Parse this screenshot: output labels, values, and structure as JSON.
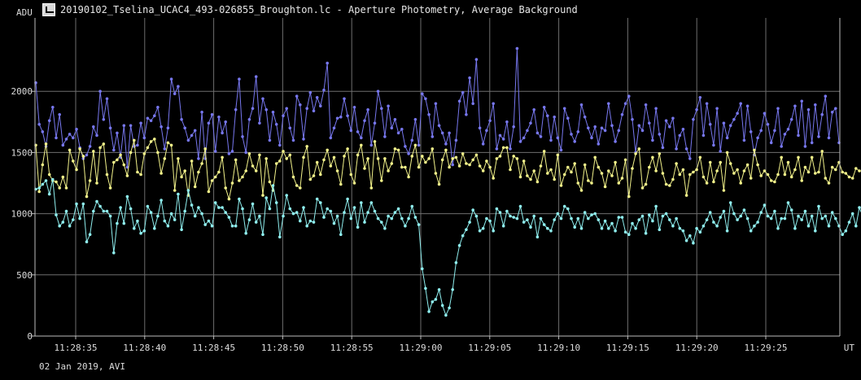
{
  "window": {
    "title": "20190102_Tselina_UCAC4_493-026855_Broughton.lc - Aperture Photometry, Average Background",
    "icon": "lightcurve-app-icon"
  },
  "footer_text": "02 Jan 2019, AVI",
  "colors": {
    "background": "#000000",
    "grid": "#6e6e6e",
    "axis": "#bdbdbd",
    "blue": "#7777ee",
    "yellow": "#f2f28a",
    "cyan": "#8fefef"
  },
  "chart_data": {
    "type": "line",
    "title": "20190102_Tselina_UCAC4_493-026855_Broughton.lc - Aperture Photometry, Average Background",
    "ylabel": "ADU",
    "xlabel": "UT",
    "ylim": [
      0,
      2600
    ],
    "yticks": [
      0,
      500,
      1000,
      1500,
      2000
    ],
    "xticks": [
      "11:28:35",
      "11:28:40",
      "11:28:45",
      "11:28:50",
      "11:28:55",
      "11:29:00",
      "11:29:05",
      "11:29:10",
      "11:29:15",
      "11:29:20",
      "11:29:25"
    ],
    "grid": true,
    "markers": true,
    "n_points": 240,
    "series": [
      {
        "color": "#7777ee",
        "values": [
          2070,
          1730,
          1670,
          1550,
          1760,
          1870,
          1620,
          1810,
          1560,
          1610,
          1650,
          1620,
          1690,
          1540,
          1450,
          1480,
          1550,
          1710,
          1640,
          2000,
          1770,
          1940,
          1700,
          1520,
          1660,
          1460,
          1720,
          1380,
          1720,
          1550,
          1560,
          1740,
          1620,
          1780,
          1760,
          1800,
          1870,
          1710,
          1530,
          1700,
          2100,
          1980,
          2040,
          1770,
          1700,
          1600,
          1640,
          1680,
          1450,
          1830,
          1450,
          1740,
          1810,
          1510,
          1790,
          1660,
          1750,
          1490,
          1510,
          1850,
          2100,
          1630,
          1500,
          1770,
          1860,
          2120,
          1740,
          1940,
          1850,
          1600,
          1830,
          1730,
          1560,
          1800,
          1860,
          1700,
          1600,
          1960,
          1890,
          1610,
          1860,
          1990,
          1840,
          1950,
          1880,
          2010,
          2230,
          1620,
          1700,
          1780,
          1790,
          1940,
          1800,
          1680,
          1870,
          1670,
          1620,
          1760,
          1850,
          1560,
          1740,
          2000,
          1860,
          1630,
          1880,
          1700,
          1770,
          1660,
          1690,
          1550,
          1490,
          1600,
          1770,
          1560,
          1980,
          1940,
          1810,
          1630,
          1900,
          1720,
          1660,
          1570,
          1660,
          1400,
          1600,
          1920,
          1990,
          1810,
          2110,
          1900,
          2260,
          1700,
          1570,
          1680,
          1760,
          1900,
          1530,
          1640,
          1610,
          1750,
          1530,
          1710,
          2350,
          1590,
          1620,
          1680,
          1740,
          1850,
          1660,
          1630,
          1870,
          1800,
          1600,
          1790,
          1620,
          1520,
          1860,
          1780,
          1650,
          1590,
          1670,
          1890,
          1790,
          1700,
          1620,
          1710,
          1570,
          1700,
          1680,
          1900,
          1720,
          1590,
          1680,
          1810,
          1900,
          1960,
          1770,
          1500,
          1720,
          1680,
          1890,
          1740,
          1600,
          1860,
          1650,
          1540,
          1760,
          1710,
          1780,
          1530,
          1640,
          1690,
          1530,
          1450,
          1770,
          1850,
          1950,
          1640,
          1900,
          1730,
          1560,
          1860,
          1510,
          1740,
          1620,
          1720,
          1770,
          1820,
          1900,
          1600,
          1880,
          1670,
          1480,
          1620,
          1680,
          1820,
          1730,
          1580,
          1680,
          1860,
          1550,
          1650,
          1690,
          1770,
          1880,
          1640,
          1920,
          1550,
          1850,
          1580,
          1890,
          1630,
          1810,
          1960,
          1620,
          1830,
          1860,
          1580
        ]
      },
      {
        "color": "#f2f28a",
        "values": [
          1560,
          1180,
          1400,
          1570,
          1320,
          1270,
          1260,
          1210,
          1300,
          1210,
          1520,
          1430,
          1360,
          1530,
          1470,
          1140,
          1270,
          1510,
          1250,
          1540,
          1570,
          1320,
          1210,
          1420,
          1440,
          1480,
          1400,
          1310,
          1500,
          1600,
          1340,
          1320,
          1490,
          1540,
          1590,
          1610,
          1500,
          1330,
          1450,
          1580,
          1560,
          1190,
          1450,
          1300,
          1350,
          1150,
          1430,
          1220,
          1340,
          1410,
          1530,
          1180,
          1270,
          1300,
          1340,
          1460,
          1210,
          1120,
          1250,
          1440,
          1270,
          1300,
          1350,
          1490,
          1390,
          1350,
          1480,
          1150,
          1450,
          1260,
          1190,
          1410,
          1430,
          1510,
          1450,
          1480,
          1300,
          1230,
          1210,
          1460,
          1550,
          1280,
          1310,
          1420,
          1320,
          1440,
          1520,
          1390,
          1460,
          1350,
          1240,
          1470,
          1530,
          1320,
          1250,
          1480,
          1560,
          1370,
          1450,
          1210,
          1590,
          1450,
          1270,
          1450,
          1350,
          1410,
          1530,
          1520,
          1380,
          1380,
          1300,
          1470,
          1560,
          1380,
          1470,
          1420,
          1450,
          1530,
          1330,
          1240,
          1440,
          1520,
          1380,
          1450,
          1460,
          1390,
          1490,
          1410,
          1400,
          1440,
          1480,
          1390,
          1350,
          1430,
          1380,
          1290,
          1450,
          1470,
          1540,
          1540,
          1360,
          1470,
          1450,
          1300,
          1430,
          1310,
          1280,
          1350,
          1260,
          1390,
          1510,
          1330,
          1360,
          1280,
          1480,
          1230,
          1320,
          1380,
          1340,
          1410,
          1250,
          1190,
          1400,
          1270,
          1250,
          1460,
          1380,
          1330,
          1220,
          1350,
          1310,
          1420,
          1250,
          1290,
          1440,
          1140,
          1370,
          1490,
          1530,
          1210,
          1240,
          1380,
          1460,
          1350,
          1490,
          1330,
          1240,
          1230,
          1280,
          1410,
          1320,
          1360,
          1150,
          1320,
          1340,
          1360,
          1460,
          1300,
          1250,
          1420,
          1260,
          1350,
          1420,
          1190,
          1500,
          1410,
          1330,
          1360,
          1250,
          1350,
          1400,
          1290,
          1520,
          1400,
          1310,
          1350,
          1320,
          1270,
          1260,
          1320,
          1460,
          1320,
          1420,
          1300,
          1360,
          1460,
          1270,
          1380,
          1340,
          1460,
          1330,
          1340,
          1510,
          1290,
          1250,
          1380,
          1360,
          1420,
          1340,
          1330,
          1300,
          1290,
          1370,
          1350
        ]
      },
      {
        "color": "#8fefef",
        "values": [
          1200,
          1210,
          1240,
          1270,
          1160,
          1280,
          990,
          900,
          930,
          1020,
          900,
          950,
          1080,
          960,
          1080,
          770,
          830,
          1020,
          1100,
          1060,
          1020,
          1020,
          980,
          680,
          920,
          1050,
          920,
          1140,
          1040,
          880,
          940,
          840,
          860,
          1060,
          1010,
          880,
          980,
          1110,
          940,
          900,
          1000,
          950,
          1160,
          870,
          1020,
          1190,
          1070,
          980,
          1050,
          1000,
          910,
          940,
          900,
          1090,
          1050,
          1050,
          1010,
          970,
          900,
          900,
          1120,
          1040,
          840,
          950,
          1080,
          930,
          980,
          830,
          1130,
          1040,
          1230,
          1090,
          810,
          980,
          1150,
          1040,
          1000,
          1010,
          940,
          1050,
          900,
          940,
          930,
          1120,
          1090,
          970,
          1040,
          1020,
          920,
          980,
          830,
          1010,
          1120,
          960,
          1050,
          890,
          1090,
          930,
          1010,
          1090,
          1020,
          960,
          930,
          880,
          980,
          960,
          1010,
          1040,
          960,
          900,
          960,
          1060,
          970,
          910,
          550,
          390,
          200,
          280,
          300,
          380,
          250,
          170,
          230,
          380,
          600,
          740,
          820,
          870,
          930,
          1030,
          980,
          860,
          880,
          960,
          940,
          860,
          1040,
          1010,
          900,
          1020,
          980,
          970,
          960,
          1060,
          930,
          950,
          890,
          980,
          810,
          960,
          910,
          880,
          860,
          950,
          1000,
          960,
          1060,
          1040,
          960,
          890,
          960,
          880,
          1010,
          960,
          990,
          1000,
          950,
          880,
          940,
          880,
          920,
          860,
          970,
          970,
          850,
          830,
          920,
          880,
          950,
          980,
          840,
          990,
          940,
          1060,
          870,
          980,
          1000,
          950,
          900,
          960,
          880,
          860,
          780,
          820,
          760,
          880,
          850,
          900,
          950,
          1010,
          930,
          900,
          970,
          1020,
          860,
          1090,
          1000,
          950,
          980,
          1030,
          960,
          860,
          900,
          930,
          1010,
          1070,
          980,
          960,
          1020,
          880,
          960,
          960,
          1090,
          1030,
          880,
          980,
          950,
          1020,
          900,
          980,
          860,
          1060,
          960,
          980,
          900,
          1010,
          960,
          900,
          830,
          860,
          930,
          1000,
          900,
          1050,
          980
        ]
      }
    ]
  }
}
